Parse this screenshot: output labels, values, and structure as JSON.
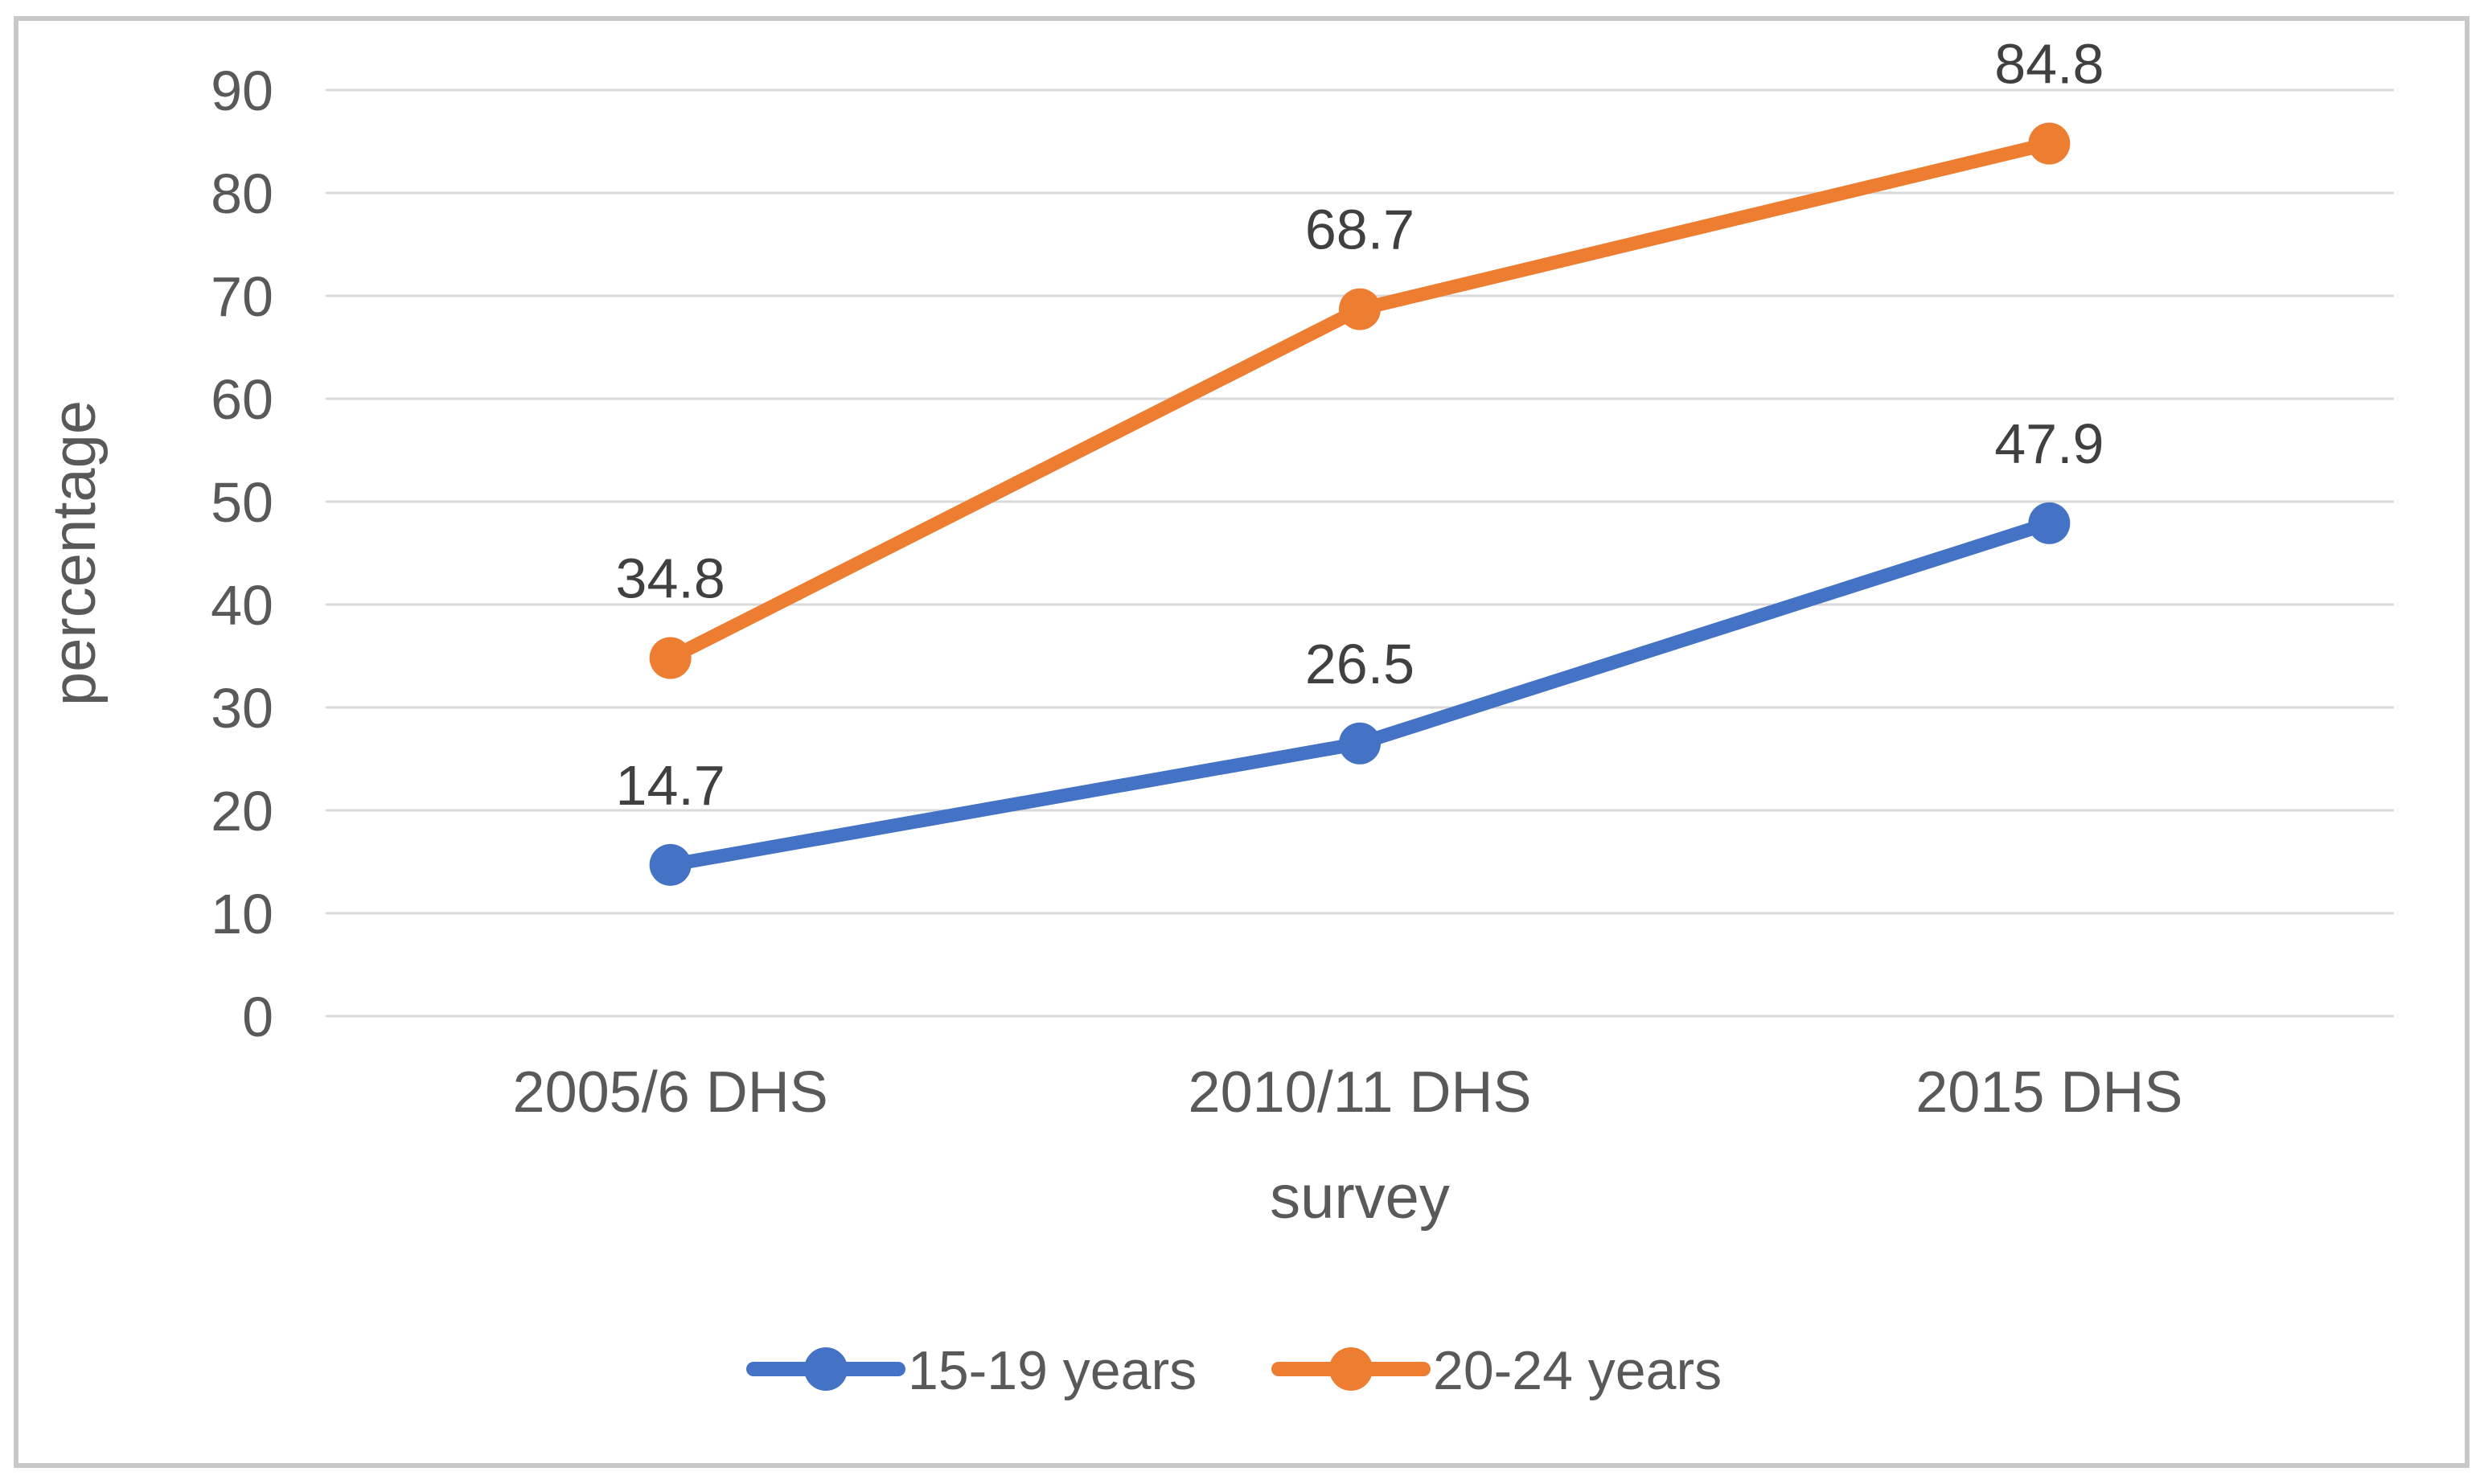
{
  "chart_data": {
    "type": "line",
    "title": "",
    "xlabel": "survey",
    "ylabel": "percentage",
    "categories": [
      "2005/6 DHS",
      "2010/11 DHS",
      "2015 DHS"
    ],
    "series": [
      {
        "name": "15-19 years",
        "color": "#4472C4",
        "values": [
          14.7,
          26.5,
          47.9
        ],
        "labels": [
          "14.7",
          "26.5",
          "47.9"
        ]
      },
      {
        "name": "20-24 years",
        "color": "#ED7D31",
        "values": [
          34.8,
          68.7,
          84.8
        ],
        "labels": [
          "34.8",
          "68.7",
          "84.8"
        ]
      }
    ],
    "ylim": [
      0,
      90
    ],
    "yticks": [
      0,
      10,
      20,
      30,
      40,
      50,
      60,
      70,
      80,
      90
    ],
    "grid": "horizontal",
    "gridline_color": "#D9D9D9",
    "axis_text_color": "#595959",
    "data_label_color": "#404040",
    "legend_position": "bottom",
    "frame_border_color": "#C8C8C8",
    "background_color": "#FFFFFF"
  }
}
